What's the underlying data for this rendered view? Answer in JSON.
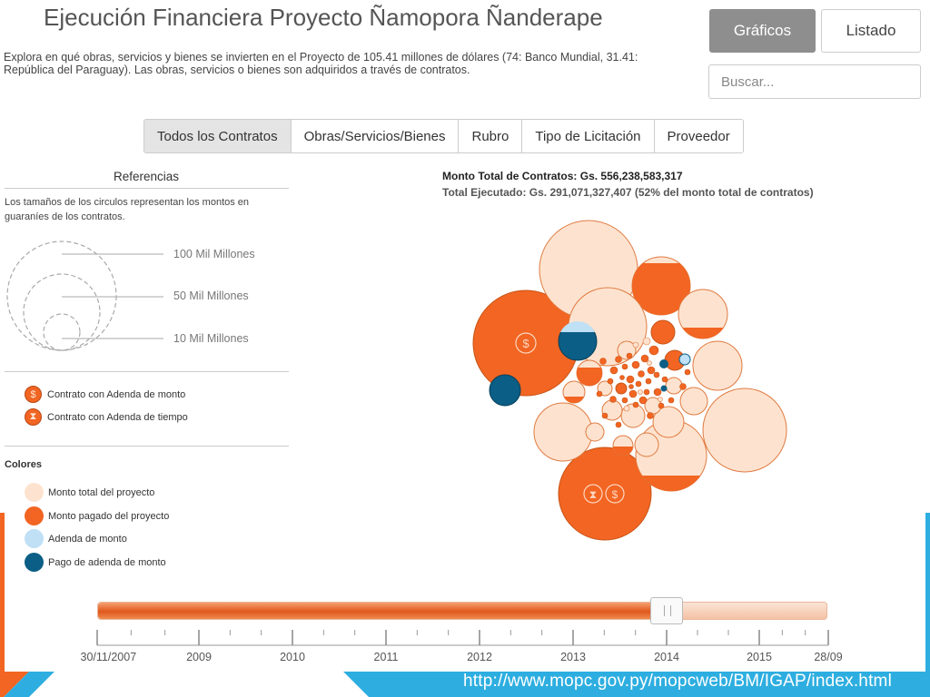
{
  "header": {
    "title": "Ejecución Financiera Proyecto Ñamopora Ñanderape",
    "description": "Explora en qué obras, servicios y bienes se invierten en el Proyecto de 105.41 millones de dólares (74: Banco Mundial, 31.41: República del Paraguay). Las obras, servicios o bienes son adquiridos a través de contratos."
  },
  "view_toggle": {
    "graficos": "Gráficos",
    "listado": "Listado"
  },
  "search": {
    "placeholder": "Buscar..."
  },
  "tabs": [
    {
      "label": "Todos los Contratos"
    },
    {
      "label": "Obras/Servicios/Bienes"
    },
    {
      "label": "Rubro"
    },
    {
      "label": "Tipo de Licitación"
    },
    {
      "label": "Proveedor"
    }
  ],
  "references": {
    "title": "Referencias",
    "description": "Los tamaños de los circulos representan los montos en guaraníes de los contratos.",
    "sizes": [
      "100 Mil Millones",
      "50 Mil Millones",
      "10 Mil Millones"
    ],
    "adenda_monto": "Contrato con Adenda de monto",
    "adenda_tiempo": "Contrato con Adenda de tiempo",
    "colors_title": "Colores",
    "color_items": [
      {
        "label": "Monto total del proyecto",
        "color": "#fde3cf"
      },
      {
        "label": "Monto pagado del proyecto",
        "color": "#f26522"
      },
      {
        "label": "Adenda de monto",
        "color": "#bfe0f5"
      },
      {
        "label": "Pago de adenda de monto",
        "color": "#0b5e85"
      }
    ]
  },
  "summary": {
    "monto_total": "Monto Total de Contratos: Gs. 556,238,583,317",
    "total_ejecutado": "Total Ejecutado: Gs. 291,071,327,407 (52% del monto total de contratos)"
  },
  "timeline": {
    "tick_labels": [
      "30/11/2007",
      "2009",
      "2010",
      "2011",
      "2012",
      "2013",
      "2014",
      "2015",
      "28/09"
    ],
    "position_fraction": 0.78
  },
  "footer": {
    "url": "http://www.mopc.gov.py/mopcweb/BM/IGAP/index.html"
  },
  "colors": {
    "accent": "#f26522",
    "light": "#fde3cf",
    "blue": "#0b5e85",
    "light_blue": "#bfe0f5",
    "footer_blue": "#2eaee0"
  }
}
